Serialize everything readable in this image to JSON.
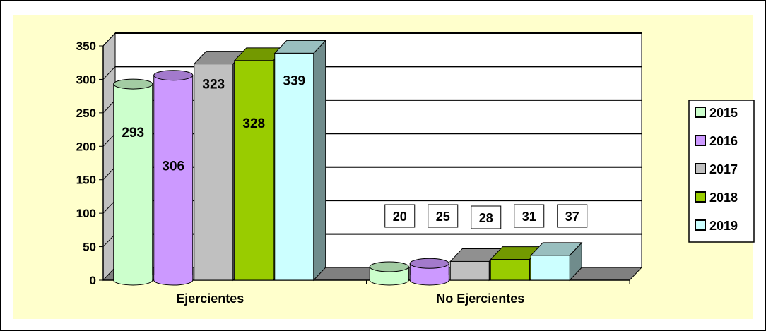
{
  "chart_data": {
    "type": "bar",
    "title": "",
    "xlabel": "",
    "ylabel": "",
    "categories": [
      "Ejercientes",
      "No Ejercientes"
    ],
    "series": [
      {
        "name": "2015",
        "values": [
          293,
          20
        ],
        "color": "#ccffcc"
      },
      {
        "name": "2016",
        "values": [
          306,
          25
        ],
        "color": "#cc99ff"
      },
      {
        "name": "2017",
        "values": [
          323,
          28
        ],
        "color": "#c0c0c0"
      },
      {
        "name": "2018",
        "values": [
          328,
          31
        ],
        "color": "#99cc00"
      },
      {
        "name": "2019",
        "values": [
          339,
          37
        ],
        "color": "#ccffff"
      }
    ],
    "yticks": [
      "0",
      "50",
      "100",
      "150",
      "200",
      "250",
      "300",
      "350"
    ],
    "ylim": [
      0,
      350
    ],
    "grid": true,
    "legend_position": "right",
    "value_labels": [
      [
        "293",
        "306",
        "323",
        "328",
        "339"
      ],
      [
        "20",
        "25",
        "28",
        "31",
        "37"
      ]
    ],
    "colors": {
      "background": "#ffffcc",
      "floor": "#808080",
      "back_wall": "#ffffff"
    }
  }
}
